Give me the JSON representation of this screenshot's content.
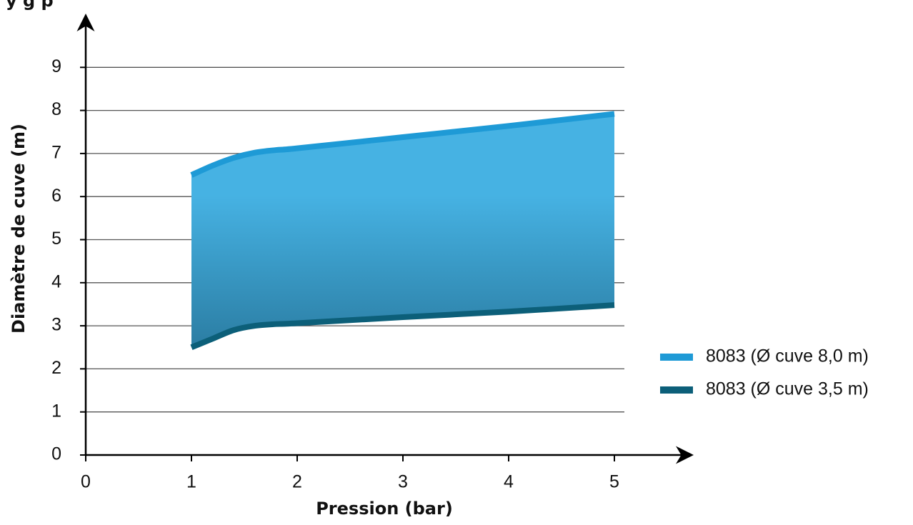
{
  "page_header": {
    "partial_title": "y g p"
  },
  "chart_data": {
    "type": "area",
    "title": "",
    "xlabel": "Pression (bar)",
    "ylabel": "Diamètre de cuve (m)",
    "xlim": [
      0,
      5
    ],
    "ylim": [
      0,
      9
    ],
    "x_ticks": [
      "0",
      "1",
      "2",
      "3",
      "4",
      "5"
    ],
    "y_ticks": [
      "0",
      "1",
      "2",
      "3",
      "4",
      "5",
      "6",
      "7",
      "8",
      "9"
    ],
    "grid": true,
    "legend_position": "right",
    "fill_between_series": true,
    "series": [
      {
        "name": "8083 (Ø cuve 8,0 m)",
        "color": "#1e9ad6",
        "x": [
          1.0,
          1.2,
          1.4,
          1.6,
          1.8,
          2.0,
          3.0,
          4.0,
          5.0
        ],
        "y": [
          6.5,
          6.72,
          6.9,
          7.02,
          7.08,
          7.12,
          7.38,
          7.64,
          7.92
        ]
      },
      {
        "name": "8083 (Ø cuve 3,5 m)",
        "color": "#0c5f79",
        "x": [
          1.0,
          1.2,
          1.4,
          1.6,
          1.8,
          2.0,
          3.0,
          4.0,
          5.0
        ],
        "y": [
          2.5,
          2.7,
          2.9,
          3.0,
          3.04,
          3.06,
          3.2,
          3.33,
          3.48
        ]
      }
    ],
    "area_color_top": "#46b2e3",
    "area_color_bottom": "#2b7da3"
  }
}
